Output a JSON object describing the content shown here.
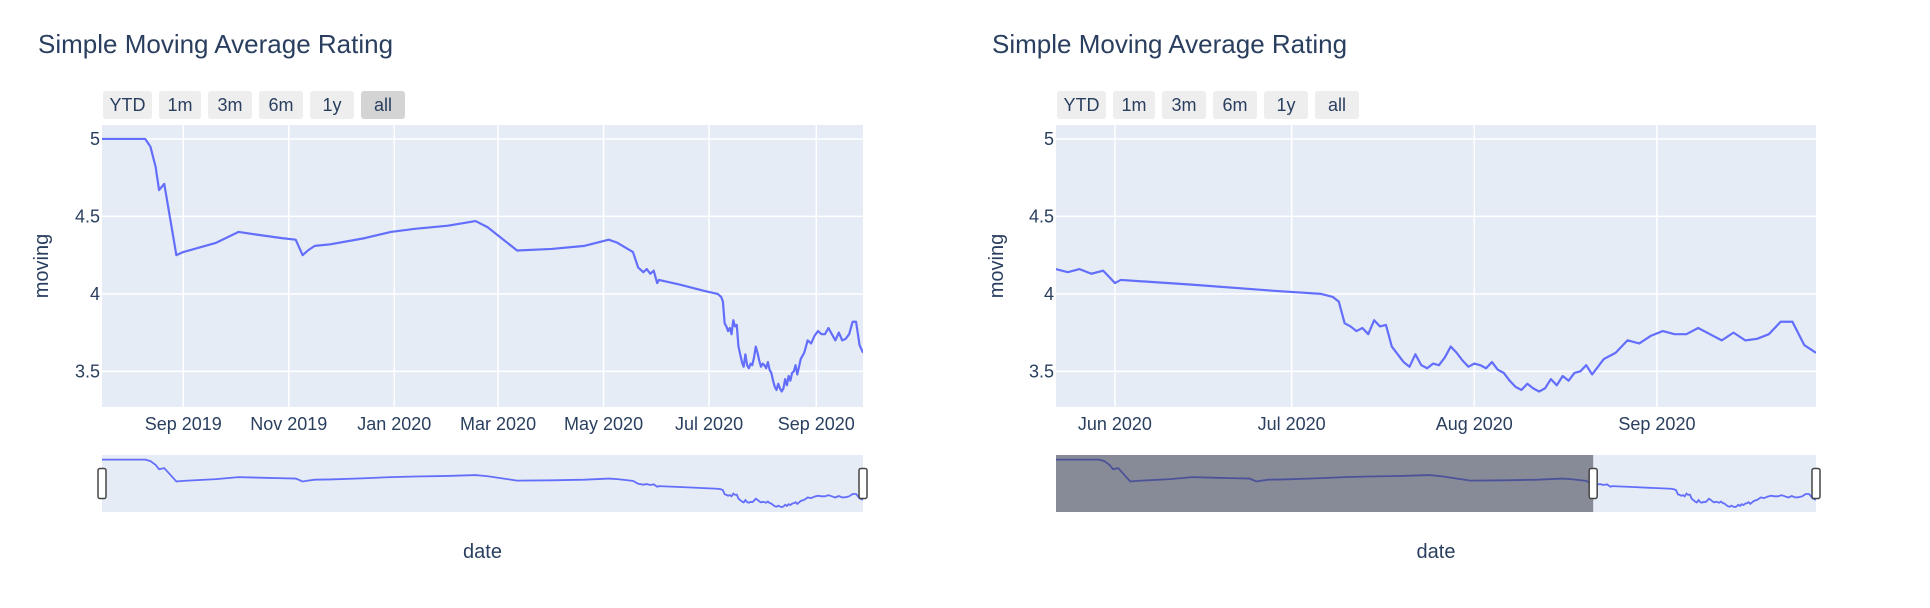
{
  "chart_data": [
    {
      "type": "line",
      "title": "Simple Moving Average Rating",
      "xlabel": "date",
      "ylabel": "moving",
      "series_color": "#636efa",
      "plot_background": "#e5ecf6",
      "grid": true,
      "xlim": [
        "2019-07-16",
        "2020-09-28"
      ],
      "ylim": [
        3.27,
        5.09
      ],
      "yticks": [
        3.5,
        4,
        4.5,
        5
      ],
      "ytick_labels": [
        "3.5",
        "4",
        "4.5",
        "5"
      ],
      "xticks": [
        "2019-09-01",
        "2019-11-01",
        "2020-01-01",
        "2020-03-01",
        "2020-05-01",
        "2020-07-01",
        "2020-09-01"
      ],
      "xtick_labels": [
        "Sep 2019",
        "Nov 2019",
        "Jan 2020",
        "Mar 2020",
        "May 2020",
        "Jul 2020",
        "Sep 2020"
      ],
      "range_buttons": [
        "YTD",
        "1m",
        "3m",
        "6m",
        "1y",
        "all"
      ],
      "active_button": "all",
      "range_slider": {
        "visible": true,
        "selected_range": [
          "2019-07-16",
          "2020-09-28"
        ]
      }
    },
    {
      "type": "line",
      "title": "Simple Moving Average Rating",
      "xlabel": "date",
      "ylabel": "moving",
      "series_color": "#636efa",
      "plot_background": "#e5ecf6",
      "grid": true,
      "xlim": [
        "2020-05-22",
        "2020-09-28"
      ],
      "ylim": [
        3.27,
        5.09
      ],
      "yticks": [
        3.5,
        4,
        4.5,
        5
      ],
      "ytick_labels": [
        "3.5",
        "4",
        "4.5",
        "5"
      ],
      "xticks": [
        "2020-06-01",
        "2020-07-01",
        "2020-08-01",
        "2020-09-01"
      ],
      "xtick_labels": [
        "Jun 2020",
        "Jul 2020",
        "Aug 2020",
        "Sep 2020"
      ],
      "range_buttons": [
        "YTD",
        "1m",
        "3m",
        "6m",
        "1y",
        "all"
      ],
      "active_button": "",
      "range_slider": {
        "visible": true,
        "selected_range": [
          "2020-05-22",
          "2020-09-28"
        ]
      }
    }
  ],
  "series": {
    "name": "moving",
    "x": [
      "2019-07-16",
      "2019-07-20",
      "2019-07-25",
      "2019-07-30",
      "2019-08-04",
      "2019-08-08",
      "2019-08-10",
      "2019-08-13",
      "2019-08-16",
      "2019-08-18",
      "2019-08-21",
      "2019-08-28",
      "2019-09-01",
      "2019-09-20",
      "2019-10-03",
      "2019-10-15",
      "2019-10-28",
      "2019-11-05",
      "2019-11-09",
      "2019-11-12",
      "2019-11-16",
      "2019-11-25",
      "2019-12-15",
      "2019-12-30",
      "2020-01-13",
      "2020-02-01",
      "2020-02-17",
      "2020-02-24",
      "2020-03-12",
      "2020-04-01",
      "2020-04-20",
      "2020-05-04",
      "2020-05-09",
      "2020-05-18",
      "2020-05-21",
      "2020-05-24",
      "2020-05-26",
      "2020-05-28",
      "2020-05-30",
      "2020-06-01",
      "2020-06-02",
      "2020-06-14",
      "2020-06-28",
      "2020-07-06",
      "2020-07-08",
      "2020-07-09",
      "2020-07-10",
      "2020-07-11",
      "2020-07-12",
      "2020-07-13",
      "2020-07-14",
      "2020-07-15",
      "2020-07-16",
      "2020-07-17",
      "2020-07-18",
      "2020-07-19",
      "2020-07-20",
      "2020-07-21",
      "2020-07-22",
      "2020-07-23",
      "2020-07-24",
      "2020-07-25",
      "2020-07-26",
      "2020-07-27",
      "2020-07-28",
      "2020-07-29",
      "2020-07-30",
      "2020-07-31",
      "2020-08-01",
      "2020-08-02",
      "2020-08-03",
      "2020-08-04",
      "2020-08-05",
      "2020-08-06",
      "2020-08-07",
      "2020-08-08",
      "2020-08-09",
      "2020-08-10",
      "2020-08-11",
      "2020-08-12",
      "2020-08-13",
      "2020-08-14",
      "2020-08-15",
      "2020-08-16",
      "2020-08-17",
      "2020-08-18",
      "2020-08-19",
      "2020-08-20",
      "2020-08-21",
      "2020-08-22",
      "2020-08-23",
      "2020-08-24",
      "2020-08-25",
      "2020-08-27",
      "2020-08-29",
      "2020-08-31",
      "2020-09-02",
      "2020-09-04",
      "2020-09-06",
      "2020-09-08",
      "2020-09-10",
      "2020-09-12",
      "2020-09-14",
      "2020-09-16",
      "2020-09-18",
      "2020-09-20",
      "2020-09-22",
      "2020-09-24",
      "2020-09-26",
      "2020-09-28"
    ],
    "y": [
      5.0,
      5.0,
      5.0,
      5.0,
      5.0,
      5.0,
      5.0,
      4.95,
      4.82,
      4.67,
      4.71,
      4.25,
      4.27,
      4.33,
      4.4,
      4.38,
      4.36,
      4.35,
      4.25,
      4.28,
      4.31,
      4.32,
      4.36,
      4.4,
      4.42,
      4.44,
      4.47,
      4.43,
      4.28,
      4.29,
      4.31,
      4.35,
      4.33,
      4.27,
      4.17,
      4.14,
      4.16,
      4.13,
      4.15,
      4.07,
      4.09,
      4.06,
      4.02,
      4.0,
      3.98,
      3.95,
      3.81,
      3.79,
      3.76,
      3.78,
      3.74,
      3.83,
      3.79,
      3.8,
      3.66,
      3.61,
      3.56,
      3.53,
      3.61,
      3.54,
      3.52,
      3.55,
      3.54,
      3.59,
      3.66,
      3.62,
      3.57,
      3.53,
      3.55,
      3.54,
      3.52,
      3.56,
      3.51,
      3.49,
      3.44,
      3.4,
      3.38,
      3.42,
      3.39,
      3.37,
      3.39,
      3.45,
      3.41,
      3.47,
      3.44,
      3.49,
      3.5,
      3.54,
      3.48,
      3.53,
      3.58,
      3.6,
      3.62,
      3.7,
      3.68,
      3.73,
      3.76,
      3.74,
      3.74,
      3.78,
      3.74,
      3.7,
      3.75,
      3.7,
      3.71,
      3.74,
      3.82,
      3.82,
      3.67,
      3.62
    ]
  }
}
